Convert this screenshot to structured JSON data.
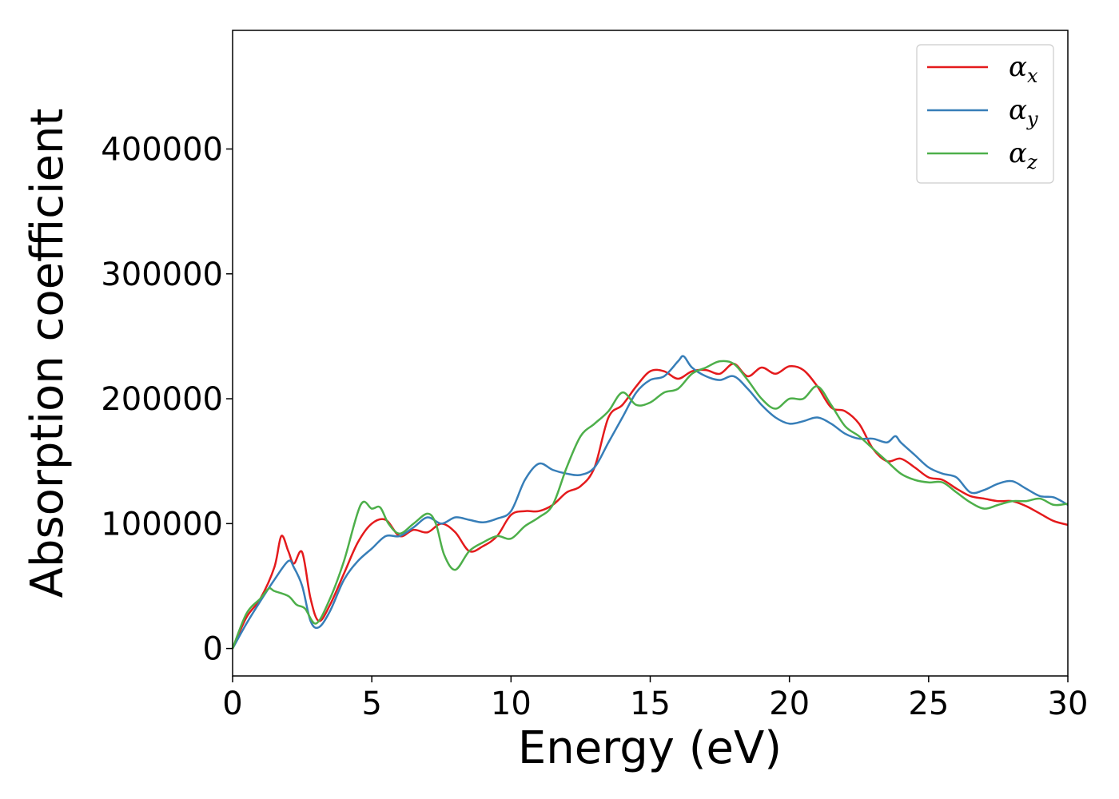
{
  "chart_data": {
    "type": "line",
    "xlabel": "Energy (eV)",
    "ylabel": "Absorption coefficient",
    "xlim": [
      0,
      30
    ],
    "ylim": [
      -22000,
      495000
    ],
    "xticks": [
      0,
      5,
      10,
      15,
      20,
      25,
      30
    ],
    "yticks": [
      0,
      100000,
      200000,
      300000,
      400000
    ],
    "legend_position": "top-right",
    "grid": false,
    "series": [
      {
        "name": "α_x",
        "base": "α",
        "sub": "x",
        "color": "#e41a1c",
        "x": [
          0,
          0.5,
          1.0,
          1.5,
          1.75,
          2.0,
          2.2,
          2.5,
          2.8,
          3.1,
          3.5,
          4.0,
          4.5,
          5.0,
          5.5,
          6.0,
          6.5,
          7.0,
          7.5,
          8.0,
          8.5,
          9.0,
          9.5,
          10.0,
          10.5,
          11.0,
          11.5,
          12.0,
          12.5,
          13.0,
          13.5,
          14.0,
          14.5,
          15.0,
          15.5,
          16.0,
          16.5,
          17.0,
          17.5,
          18.0,
          18.5,
          19.0,
          19.5,
          20.0,
          20.5,
          21.0,
          21.5,
          22.0,
          22.5,
          23.0,
          23.5,
          24.0,
          24.5,
          25.0,
          25.5,
          26.0,
          26.5,
          27.0,
          27.5,
          28.0,
          28.5,
          29.0,
          29.5,
          30.0
        ],
        "y": [
          0,
          25000,
          40000,
          65000,
          90000,
          78000,
          68000,
          77000,
          40000,
          22000,
          35000,
          60000,
          85000,
          100000,
          103000,
          90000,
          95000,
          93000,
          100000,
          93000,
          78000,
          82000,
          90000,
          107000,
          110000,
          110000,
          115000,
          125000,
          130000,
          145000,
          185000,
          195000,
          210000,
          222000,
          222000,
          216000,
          222000,
          223000,
          220000,
          228000,
          218000,
          225000,
          220000,
          226000,
          223000,
          210000,
          193000,
          190000,
          180000,
          160000,
          150000,
          152000,
          145000,
          137000,
          135000,
          128000,
          122000,
          120000,
          118000,
          118000,
          114000,
          108000,
          102000,
          99000
        ]
      },
      {
        "name": "α_y",
        "base": "α",
        "sub": "y",
        "color": "#377eb8",
        "x": [
          0,
          0.5,
          1.0,
          1.5,
          2.0,
          2.2,
          2.5,
          2.8,
          3.1,
          3.5,
          4.0,
          4.5,
          5.0,
          5.5,
          6.0,
          6.5,
          7.0,
          7.5,
          8.0,
          8.5,
          9.0,
          9.5,
          10.0,
          10.5,
          11.0,
          11.5,
          12.0,
          12.5,
          13.0,
          13.5,
          14.0,
          14.5,
          15.0,
          15.5,
          16.0,
          16.2,
          16.5,
          17.0,
          17.5,
          18.0,
          18.5,
          19.0,
          19.5,
          20.0,
          20.5,
          21.0,
          21.5,
          22.0,
          22.5,
          23.0,
          23.5,
          23.8,
          24.0,
          24.5,
          25.0,
          25.5,
          26.0,
          26.5,
          27.0,
          27.5,
          28.0,
          28.5,
          29.0,
          29.5,
          30.0
        ],
        "y": [
          0,
          20000,
          38000,
          55000,
          70000,
          65000,
          50000,
          22000,
          17000,
          30000,
          55000,
          70000,
          80000,
          90000,
          90000,
          97000,
          105000,
          100000,
          105000,
          103000,
          101000,
          104000,
          110000,
          135000,
          148000,
          143000,
          140000,
          139000,
          145000,
          165000,
          185000,
          205000,
          215000,
          218000,
          230000,
          234000,
          225000,
          218000,
          215000,
          218000,
          208000,
          195000,
          185000,
          180000,
          182000,
          185000,
          180000,
          172000,
          168000,
          168000,
          165000,
          170000,
          165000,
          155000,
          145000,
          140000,
          137000,
          125000,
          127000,
          132000,
          134000,
          128000,
          122000,
          121000,
          115000
        ]
      },
      {
        "name": "α_z",
        "base": "α",
        "sub": "z",
        "color": "#4daf4a",
        "x": [
          0,
          0.5,
          1.0,
          1.3,
          1.5,
          2.0,
          2.3,
          2.6,
          3.0,
          3.5,
          4.0,
          4.6,
          5.0,
          5.3,
          5.6,
          6.0,
          6.5,
          7.0,
          7.3,
          7.6,
          8.0,
          8.5,
          9.0,
          9.5,
          10.0,
          10.5,
          11.0,
          11.5,
          12.0,
          12.5,
          13.0,
          13.5,
          14.0,
          14.5,
          15.0,
          15.5,
          16.0,
          16.5,
          17.0,
          17.5,
          18.0,
          18.5,
          19.0,
          19.5,
          20.0,
          20.5,
          21.0,
          21.5,
          22.0,
          22.5,
          23.0,
          23.5,
          24.0,
          24.5,
          25.0,
          25.5,
          26.0,
          26.5,
          27.0,
          27.5,
          28.0,
          28.5,
          29.0,
          29.5,
          30.0
        ],
        "y": [
          0,
          28000,
          40000,
          48000,
          46000,
          42000,
          35000,
          32000,
          20000,
          40000,
          70000,
          115000,
          112000,
          113000,
          100000,
          92000,
          100000,
          108000,
          100000,
          75000,
          63000,
          78000,
          85000,
          90000,
          88000,
          98000,
          105000,
          115000,
          145000,
          170000,
          180000,
          190000,
          205000,
          195000,
          197000,
          205000,
          208000,
          220000,
          225000,
          230000,
          228000,
          215000,
          200000,
          192000,
          200000,
          200000,
          210000,
          195000,
          178000,
          170000,
          160000,
          150000,
          140000,
          135000,
          133000,
          133000,
          125000,
          117000,
          112000,
          115000,
          118000,
          118000,
          120000,
          115000,
          116000
        ]
      }
    ]
  }
}
